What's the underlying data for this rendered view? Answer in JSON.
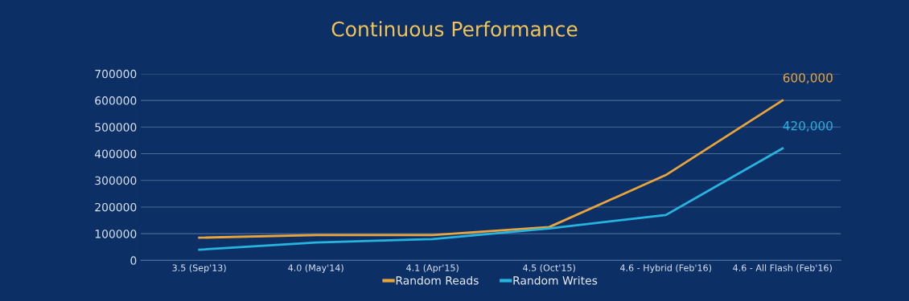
{
  "chart_data": {
    "type": "line",
    "title": "Continuous Performance",
    "categories": [
      "3.5 (Sep'13)",
      "4.0 (May'14)",
      "4.1 (Apr'15)",
      "4.5 (Oct'15)",
      "4.6 - Hybrid (Feb'16)",
      "4.6 - All Flash (Feb'16)"
    ],
    "series": [
      {
        "name": "Random Reads",
        "color": "#e9a53a",
        "values": [
          85000,
          95000,
          95000,
          125000,
          320000,
          600000
        ],
        "value_labels": [
          null,
          null,
          null,
          null,
          null,
          "600,000"
        ]
      },
      {
        "name": "Random Writes",
        "color": "#27b4df",
        "values": [
          40000,
          67000,
          80000,
          120000,
          170000,
          420000
        ],
        "value_labels": [
          null,
          null,
          null,
          null,
          null,
          "420,000"
        ]
      }
    ],
    "ylim": [
      0,
      700000
    ],
    "yticks": [
      0,
      100000,
      200000,
      300000,
      400000,
      500000,
      600000,
      700000
    ],
    "grid": "y",
    "legend": "bottom",
    "marker": "none",
    "line_style": "solid"
  }
}
